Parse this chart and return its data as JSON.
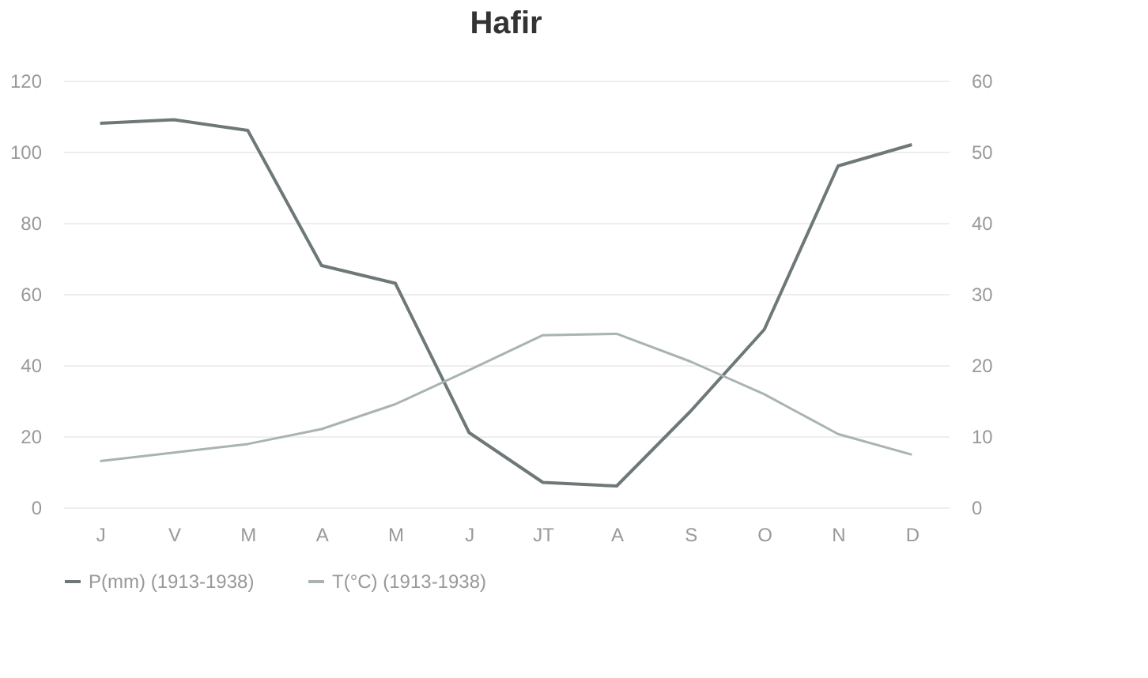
{
  "chart_data": {
    "type": "line",
    "title": "Hafir",
    "categories": [
      "J",
      "V",
      "M",
      "A",
      "M",
      "J",
      "JT",
      "A",
      "S",
      "O",
      "N",
      "D"
    ],
    "series": [
      {
        "name": "P(mm) (1913-1938)",
        "color": "#6e7878",
        "values": [
          108,
          109,
          106,
          68,
          63,
          21,
          7,
          6,
          27,
          50,
          96,
          102
        ]
      },
      {
        "name": "T(°C) (1913-1938)",
        "color": "#a9b3b3",
        "axis": "y2",
        "values": [
          6.5,
          7.7,
          8.9,
          11,
          14.5,
          19.3,
          24.2,
          24.4,
          20.5,
          15.9,
          10.3,
          7.4
        ]
      }
    ],
    "ylim": [
      0,
      120
    ],
    "yticks": [
      0,
      20,
      40,
      60,
      80,
      100,
      120
    ],
    "y2lim": [
      0,
      60
    ],
    "y2ticks": [
      0,
      10,
      20,
      30,
      40,
      50,
      60
    ],
    "grid": "y",
    "legend": "bottom",
    "marker": "none",
    "line_style": "solid"
  }
}
